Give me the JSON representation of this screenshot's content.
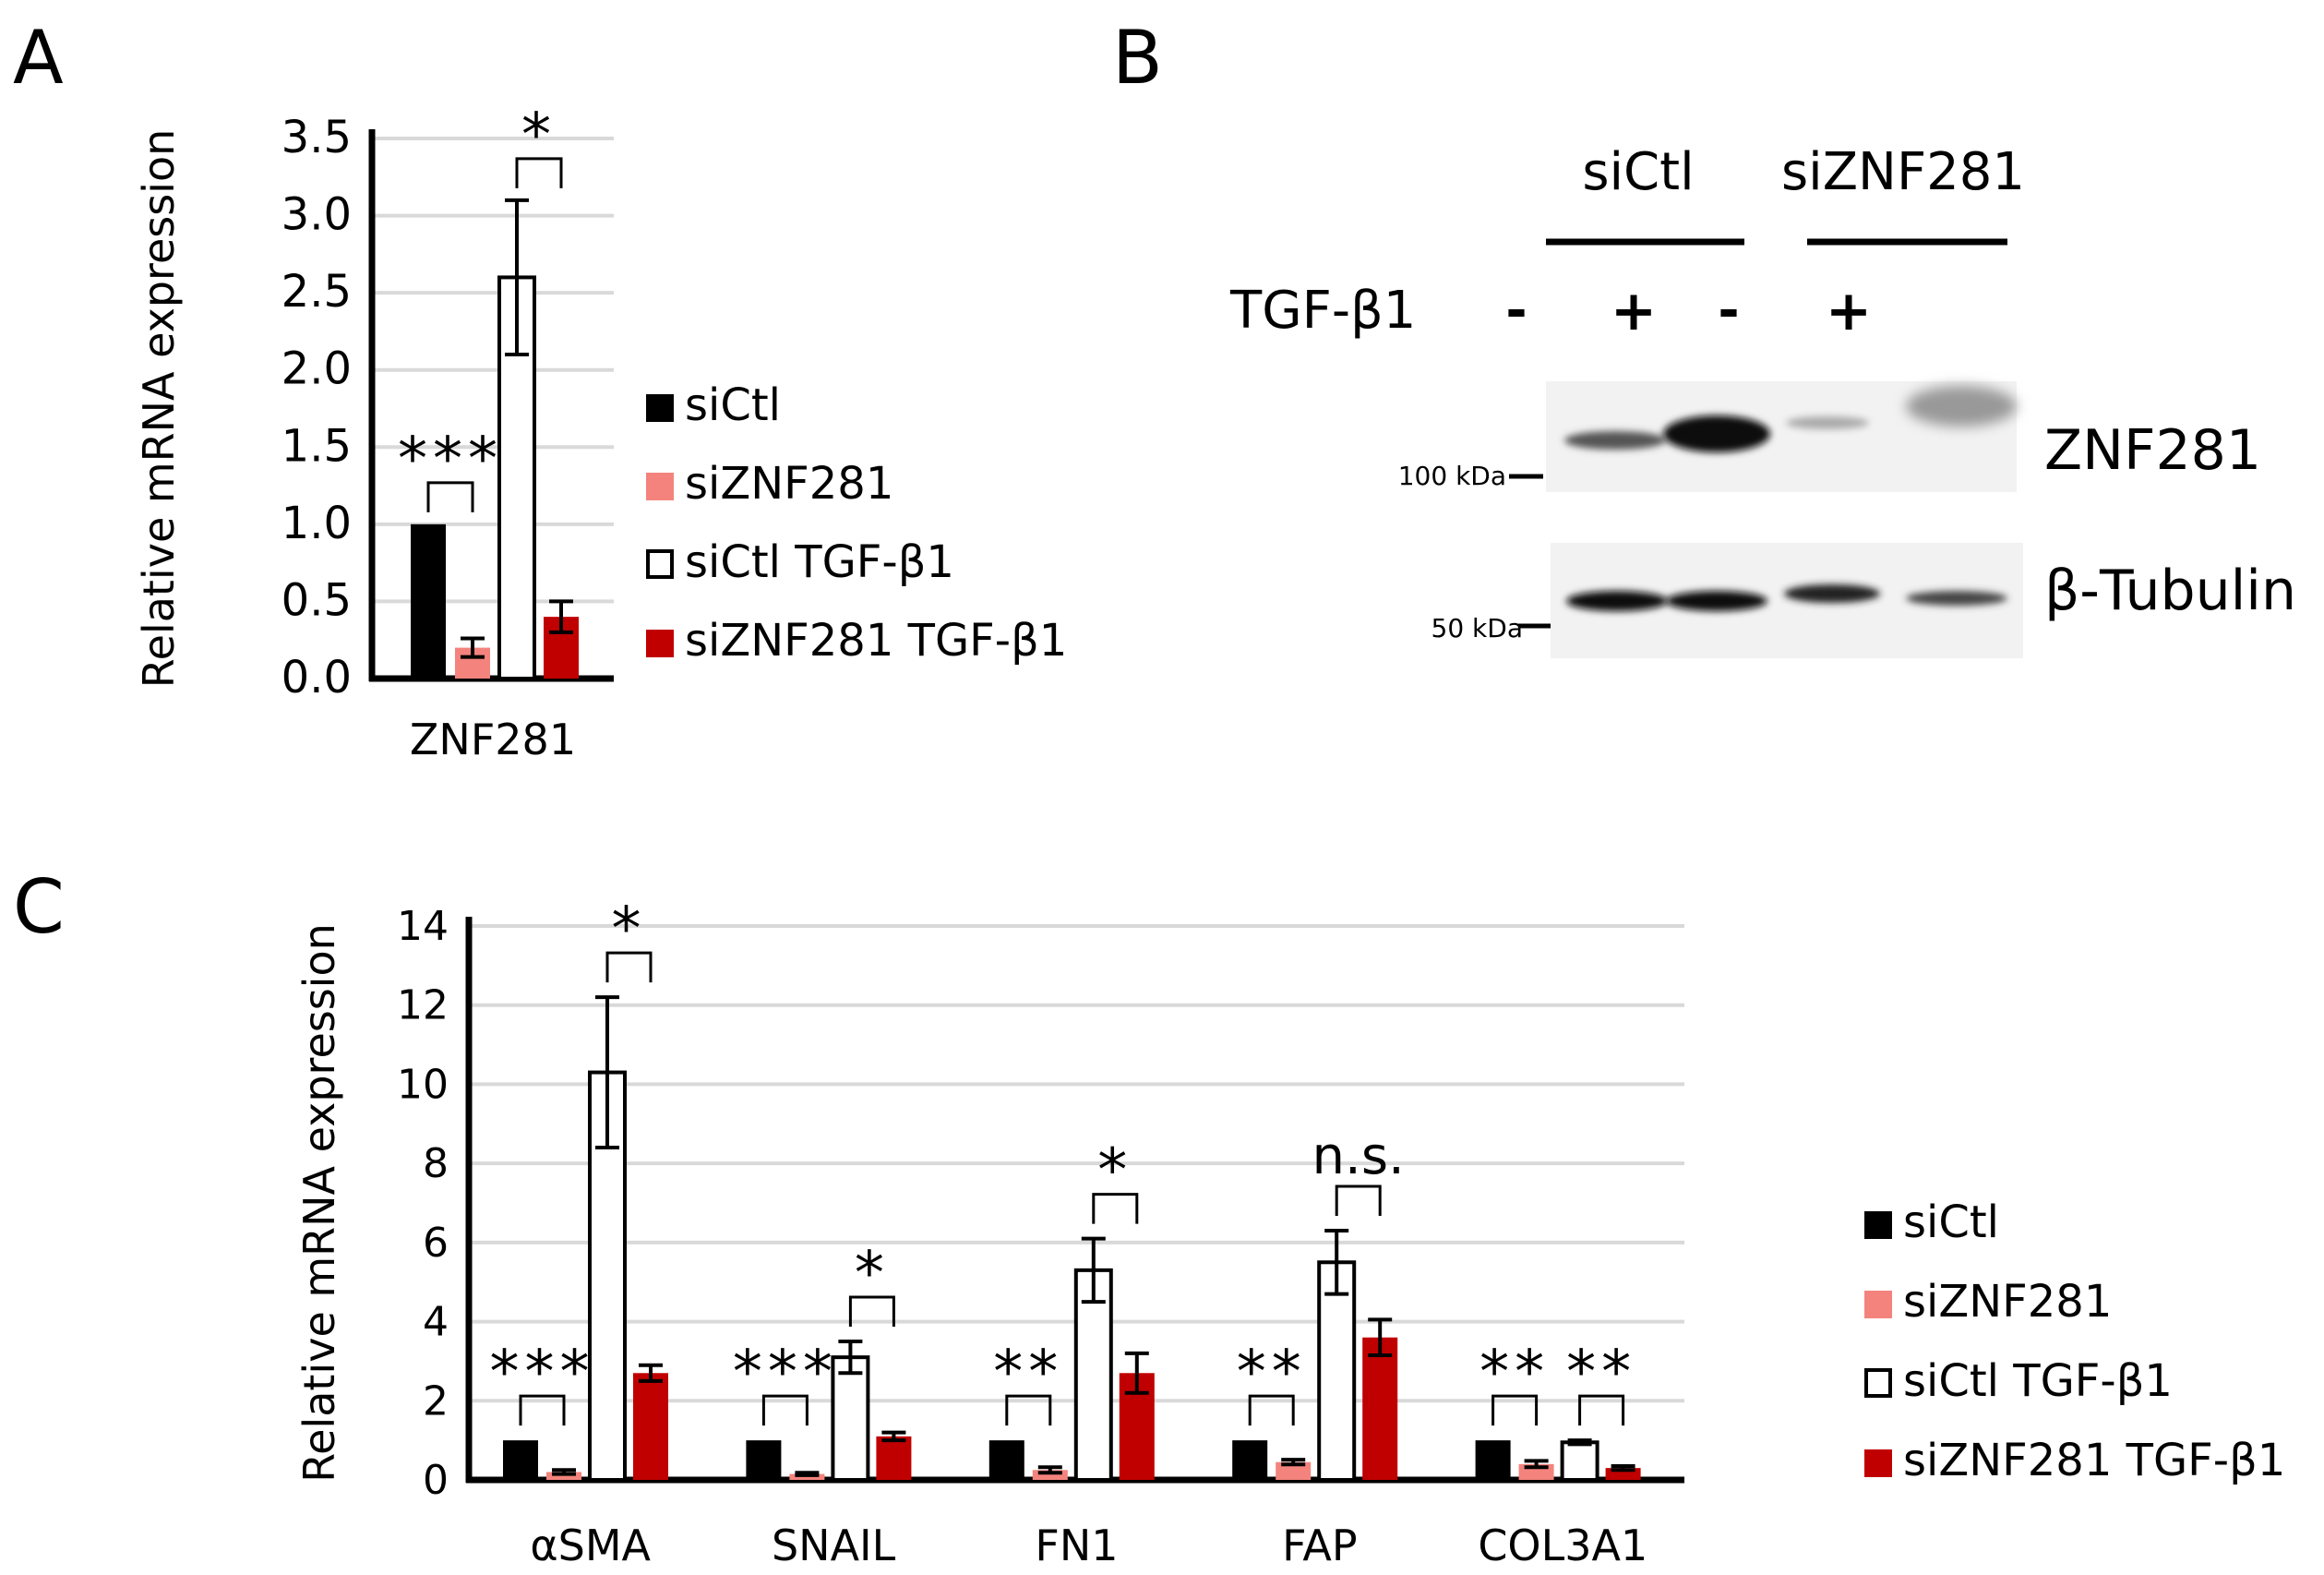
{
  "colors": {
    "siCtl": "#000000",
    "siZNF281": "#f4837d",
    "siCtl_TGF": "#ffffff",
    "siZNF281_TGF": "#c00000",
    "gridline": "#d9d9d9",
    "axis": "#000000"
  },
  "panels": {
    "A": {
      "label": "A"
    },
    "B": {
      "label": "B"
    },
    "C": {
      "label": "C"
    }
  },
  "chart_data": [
    {
      "panel": "A",
      "type": "bar",
      "ylabel": "Relative mRNA expression",
      "ylim": [
        0,
        3.5
      ],
      "yticks": [
        "3.5",
        "3.0",
        "2.5",
        "2.0",
        "1.5",
        "1.0",
        "0.5",
        "0.0"
      ],
      "categories": [
        "ZNF281"
      ],
      "series": [
        {
          "name": "siCtl",
          "values": [
            1.0
          ],
          "errors": [
            0.0
          ]
        },
        {
          "name": "siZNF281",
          "values": [
            0.2
          ],
          "errors": [
            0.06
          ]
        },
        {
          "name": "siCtl TGF-β1",
          "values": [
            2.6
          ],
          "errors": [
            0.5
          ]
        },
        {
          "name": "siZNF281 TGF-β1",
          "values": [
            0.4
          ],
          "errors": [
            0.1
          ]
        }
      ],
      "significance": [
        {
          "category": 0,
          "pair": [
            0,
            1
          ],
          "label": "***"
        },
        {
          "category": 0,
          "pair": [
            2,
            3
          ],
          "label": "*"
        }
      ],
      "legend": [
        "siCtl",
        "siZNF281",
        "siCtl TGF-β1",
        "siZNF281 TGF-β1"
      ]
    },
    {
      "panel": "C",
      "type": "bar",
      "ylabel": "Relative mRNA expression",
      "ylim": [
        0,
        14
      ],
      "yticks": [
        "14",
        "12",
        "10",
        "8",
        "6",
        "4",
        "2",
        "0"
      ],
      "categories": [
        "αSMA",
        "SNAIL",
        "FN1",
        "FAP",
        "COL3A1"
      ],
      "series": [
        {
          "name": "siCtl",
          "values": [
            1.0,
            1.0,
            1.0,
            1.0,
            1.0
          ],
          "errors": [
            0,
            0,
            0,
            0,
            0
          ]
        },
        {
          "name": "siZNF281",
          "values": [
            0.2,
            0.15,
            0.25,
            0.45,
            0.4
          ],
          "errors": [
            0.05,
            0.03,
            0.07,
            0.06,
            0.08
          ]
        },
        {
          "name": "siCtl TGF-β1",
          "values": [
            10.3,
            3.1,
            5.3,
            5.5,
            0.95
          ],
          "errors": [
            1.9,
            0.4,
            0.8,
            0.8,
            0.05
          ]
        },
        {
          "name": "siZNF281 TGF-β1",
          "values": [
            2.7,
            1.1,
            2.7,
            3.6,
            0.3
          ],
          "errors": [
            0.2,
            0.1,
            0.5,
            0.45,
            0.05
          ]
        }
      ],
      "significance": [
        {
          "category": 0,
          "pair": [
            0,
            1
          ],
          "label": "***"
        },
        {
          "category": 0,
          "pair": [
            2,
            3
          ],
          "label": "*"
        },
        {
          "category": 1,
          "pair": [
            0,
            1
          ],
          "label": "***"
        },
        {
          "category": 1,
          "pair": [
            2,
            3
          ],
          "label": "*"
        },
        {
          "category": 2,
          "pair": [
            0,
            1
          ],
          "label": "**"
        },
        {
          "category": 2,
          "pair": [
            2,
            3
          ],
          "label": "*"
        },
        {
          "category": 3,
          "pair": [
            0,
            1
          ],
          "label": "**"
        },
        {
          "category": 3,
          "pair": [
            2,
            3
          ],
          "label": "n.s."
        },
        {
          "category": 4,
          "pair": [
            0,
            1
          ],
          "label": "**"
        },
        {
          "category": 4,
          "pair": [
            2,
            3
          ],
          "label": "**"
        }
      ],
      "legend": [
        "siCtl",
        "siZNF281",
        "siCtl TGF-β1",
        "siZNF281 TGF-β1"
      ]
    }
  ],
  "blot": {
    "groups": [
      "siCtl",
      "siZNF281"
    ],
    "treatment_label": "TGF-β1",
    "lanes": [
      "-",
      "+",
      "-",
      "+"
    ],
    "rows": [
      {
        "name": "ZNF281",
        "marker": "100 kDa"
      },
      {
        "name": "β-Tubulin",
        "marker": "50 kDa"
      }
    ]
  }
}
